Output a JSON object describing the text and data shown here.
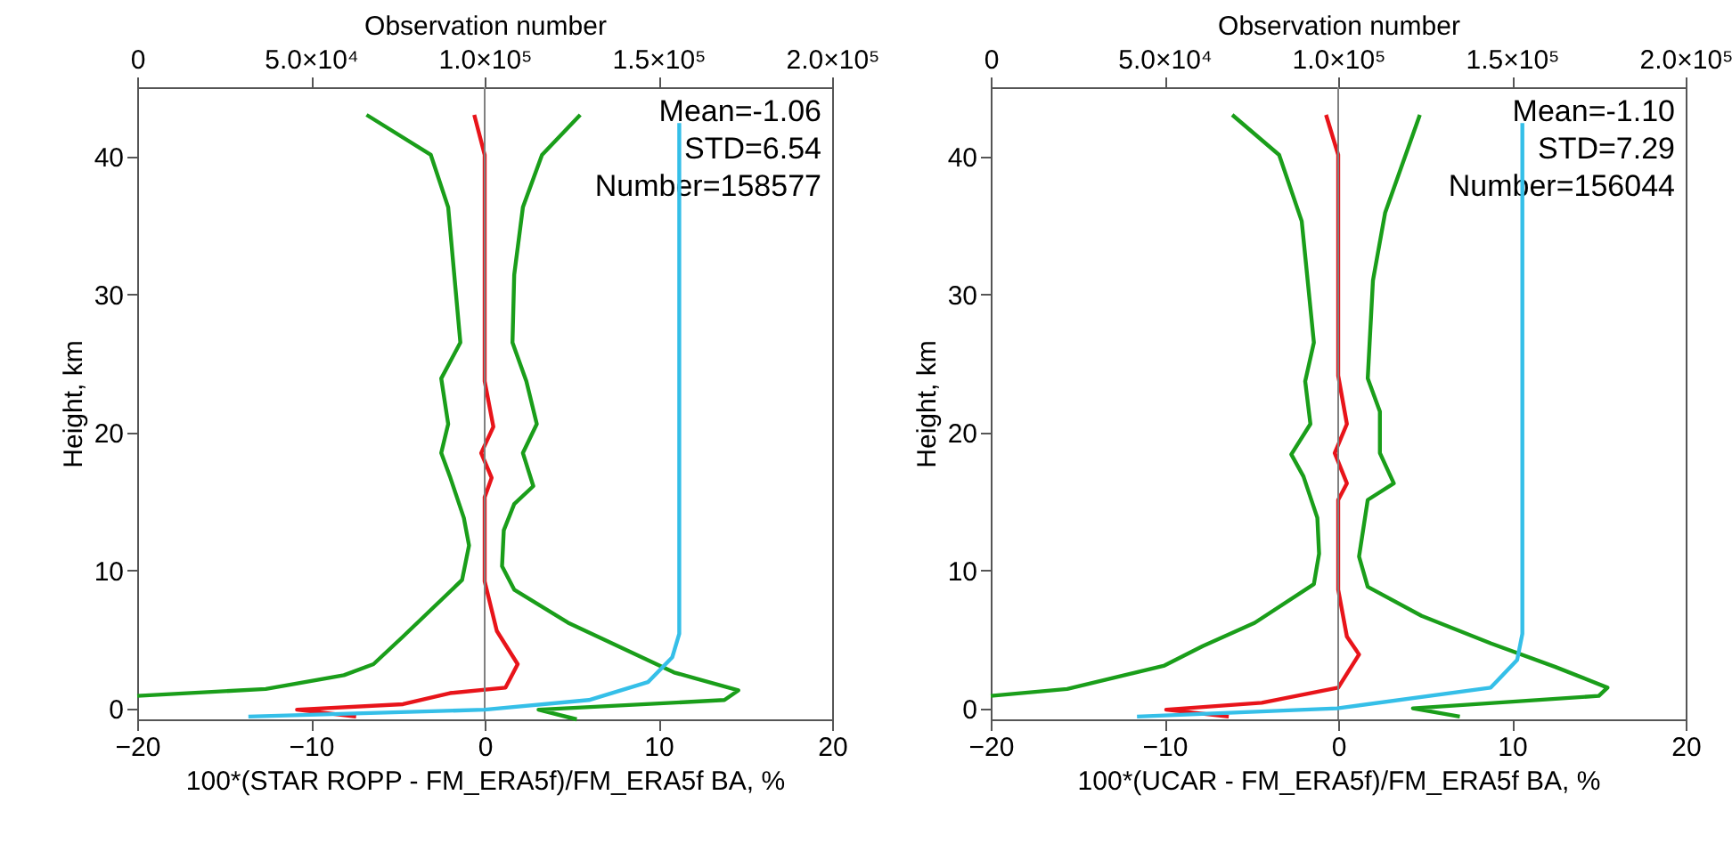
{
  "chart_data": [
    {
      "type": "line",
      "xlabel": "100*(STAR ROPP - FM_ERA5f)/FM_ERA5f BA, %",
      "ylabel": "Height, km",
      "x2label": "Observation number",
      "xlim": [
        -20,
        20
      ],
      "xticks": [
        -20,
        -10,
        0,
        10,
        20
      ],
      "x2lim": [
        0,
        200000
      ],
      "x2ticks": [
        0,
        {
          "value": 50000,
          "label": "5.0×10⁴"
        },
        {
          "value": 100000,
          "label": "1.0×10⁵"
        },
        {
          "value": 150000,
          "label": "1.5×10⁵"
        },
        {
          "value": 200000,
          "label": "2.0×10⁵"
        }
      ],
      "ylim": [
        -0.8,
        45
      ],
      "yticks": [
        0,
        10,
        20,
        30,
        40
      ],
      "grid": false,
      "annotations": [
        "Mean=-1.06",
        "STD=6.54",
        "Number=158577"
      ],
      "ref_lines": [
        {
          "axis": "x",
          "value": 0,
          "color": "#808080"
        }
      ],
      "series": [
        {
          "color": "#1a9e1a",
          "x": [
            -6.8,
            -3.1,
            -2.1,
            -1.4,
            -2.5,
            -2.1,
            -2.5,
            -2.0,
            -1.2,
            -0.9,
            -1.3,
            -4.7,
            -6.4,
            -8.1,
            -12.6,
            -20
          ],
          "values": [
            43.0,
            40.1,
            36.3,
            26.5,
            23.9,
            20.6,
            18.5,
            16.8,
            13.8,
            11.8,
            9.3,
            5.2,
            3.2,
            2.4,
            1.4,
            0.9
          ]
        },
        {
          "color": "#1a9e1a",
          "x": [
            5.5,
            3.3,
            2.2,
            1.7,
            1.6,
            2.4,
            3.0,
            2.2,
            2.8,
            1.7,
            1.1,
            1.0,
            1.7,
            4.8,
            6.5,
            10.9,
            14.6,
            13.8,
            3.1,
            5.3
          ],
          "values": [
            43.0,
            40.1,
            36.3,
            31.4,
            26.5,
            23.7,
            20.6,
            18.5,
            16.1,
            14.8,
            12.9,
            10.3,
            8.6,
            6.2,
            5.2,
            2.6,
            1.3,
            0.6,
            -0.1,
            -0.8
          ]
        },
        {
          "color": "#e8141a",
          "x": [
            -0.6,
            0,
            0,
            0,
            0.5,
            -0.2,
            0.4,
            0,
            0,
            0,
            0.7,
            1.9,
            1.2,
            -2.0,
            -4.7,
            -10.8,
            -7.4
          ],
          "values": [
            43.0,
            40.1,
            25.8,
            23.7,
            20.4,
            18.5,
            16.7,
            15.3,
            10.8,
            9.2,
            5.6,
            3.2,
            1.5,
            1.1,
            0.3,
            -0.1,
            -0.6
          ]
        },
        {
          "color": "#35bfe8",
          "axis": "x2",
          "x": [
            156000,
            156000,
            154000,
            147000,
            130000,
            100000,
            32000
          ],
          "values": [
            42.4,
            5.4,
            3.7,
            1.9,
            0.6,
            -0.1,
            -0.6
          ]
        }
      ]
    },
    {
      "type": "line",
      "xlabel": "100*(UCAR - FM_ERA5f)/FM_ERA5f BA, %",
      "ylabel": "Height, km",
      "x2label": "Observation number",
      "xlim": [
        -20,
        20
      ],
      "xticks": [
        -20,
        -10,
        0,
        10,
        20
      ],
      "x2lim": [
        0,
        200000
      ],
      "x2ticks": [
        0,
        {
          "value": 50000,
          "label": "5.0×10⁴"
        },
        {
          "value": 100000,
          "label": "1.0×10⁵"
        },
        {
          "value": 150000,
          "label": "1.5×10⁵"
        },
        {
          "value": 200000,
          "label": "2.0×10⁵"
        }
      ],
      "ylim": [
        -0.8,
        45
      ],
      "yticks": [
        0,
        10,
        20,
        30,
        40
      ],
      "grid": false,
      "annotations": [
        "Mean=-1.10",
        "STD=7.29",
        "Number=156044"
      ],
      "ref_lines": [
        {
          "axis": "x",
          "value": 0,
          "color": "#808080"
        }
      ],
      "series": [
        {
          "color": "#1a9e1a",
          "x": [
            -6.1,
            -3.4,
            -2.1,
            -1.4,
            -1.9,
            -1.6,
            -2.7,
            -2.0,
            -1.2,
            -1.1,
            -1.4,
            -4.8,
            -7.8,
            -10.0,
            -15.6,
            -20
          ],
          "values": [
            43.0,
            40.1,
            35.3,
            26.5,
            23.7,
            20.6,
            18.4,
            16.8,
            13.8,
            11.2,
            9.0,
            6.2,
            4.5,
            3.1,
            1.4,
            0.9
          ]
        },
        {
          "color": "#1a9e1a",
          "x": [
            4.7,
            2.7,
            2.0,
            1.7,
            2.4,
            2.4,
            3.2,
            1.7,
            1.2,
            1.7,
            4.8,
            8.8,
            12.5,
            15.5,
            15.0,
            4.3,
            7.0
          ],
          "values": [
            43.0,
            35.9,
            31.0,
            23.9,
            21.5,
            18.5,
            16.3,
            15.1,
            11.0,
            8.8,
            6.7,
            4.7,
            3.0,
            1.5,
            0.9,
            0.0,
            -0.6
          ]
        },
        {
          "color": "#e8141a",
          "x": [
            -0.7,
            0,
            0,
            0.5,
            -0.2,
            0.5,
            0,
            0,
            0.5,
            1.2,
            0,
            -4.4,
            -9.9,
            -6.3
          ],
          "values": [
            43.0,
            40.1,
            24.1,
            20.6,
            18.5,
            16.3,
            15.1,
            8.6,
            5.2,
            3.9,
            1.5,
            0.4,
            -0.1,
            -0.6
          ]
        },
        {
          "color": "#35bfe8",
          "axis": "x2",
          "x": [
            153000,
            153000,
            151500,
            143900,
            99700,
            42100
          ],
          "values": [
            42.4,
            5.4,
            3.5,
            1.5,
            0,
            -0.6
          ]
        }
      ]
    }
  ]
}
